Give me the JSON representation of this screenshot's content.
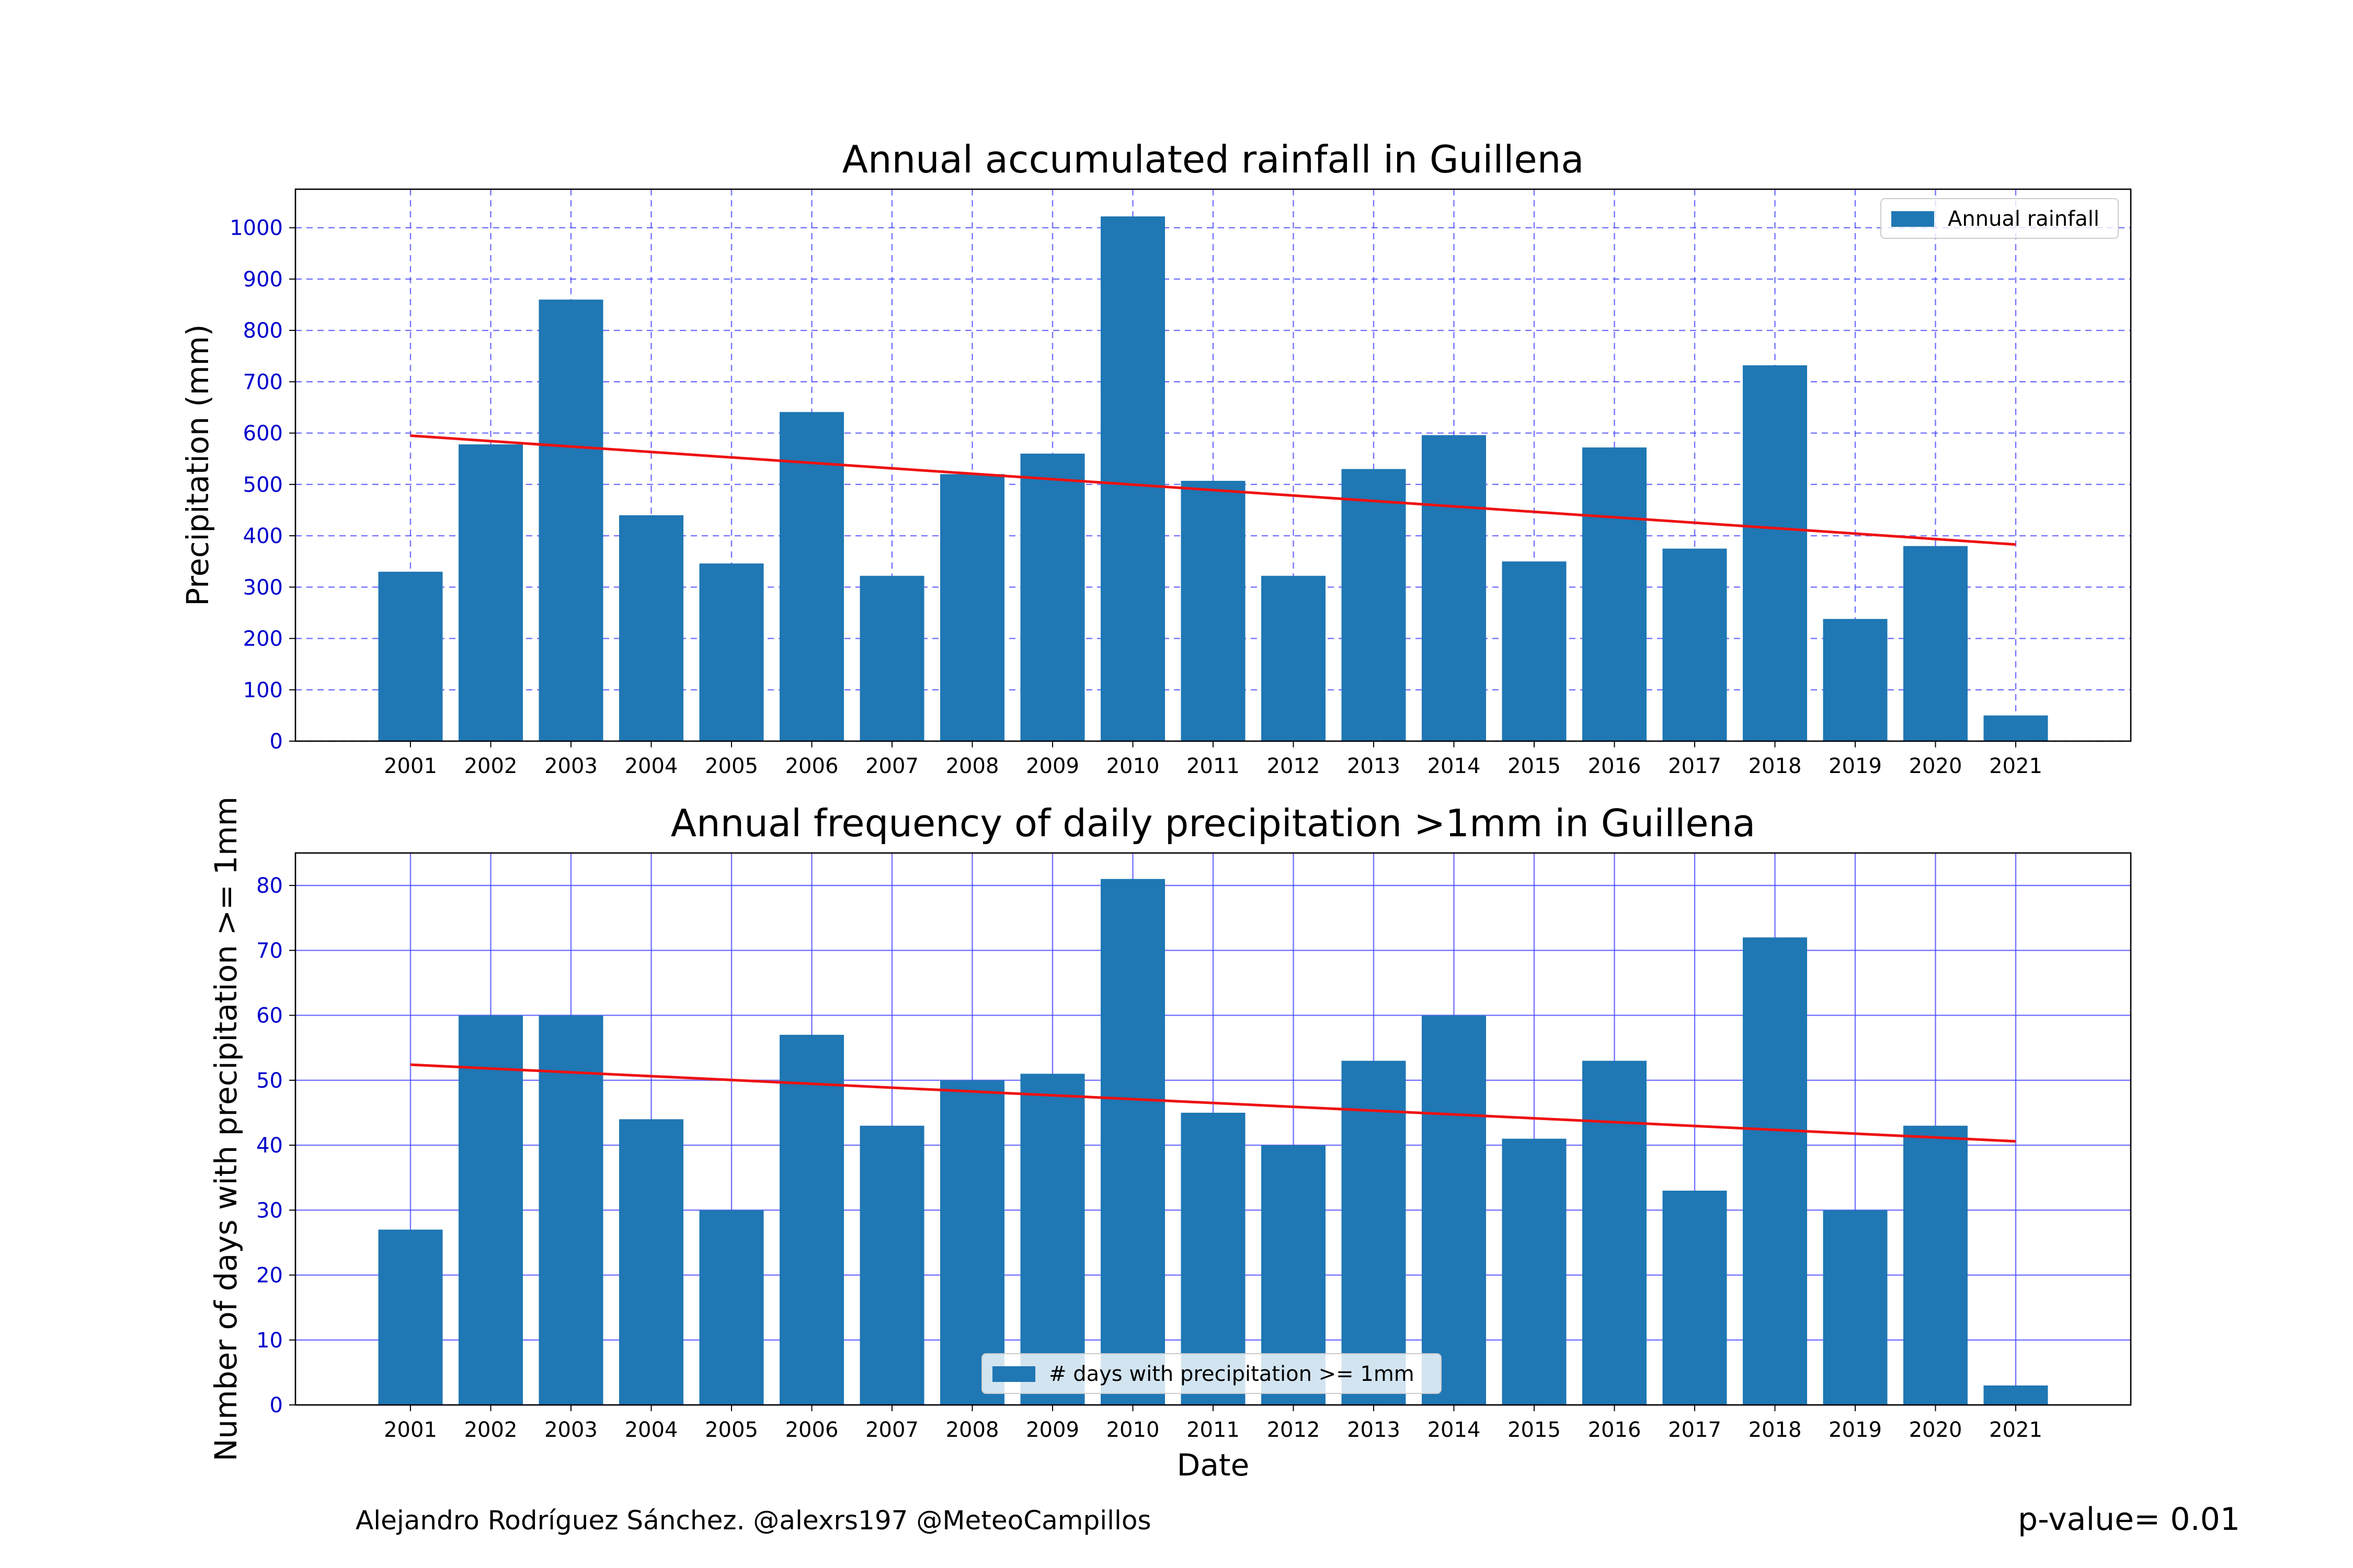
{
  "chart_data": [
    {
      "type": "bar",
      "title": "Annual accumulated rainfall in Guillena",
      "xlabel": "",
      "ylabel": "Precipitation (mm)",
      "categories": [
        "2001",
        "2002",
        "2003",
        "2004",
        "2005",
        "2006",
        "2007",
        "2008",
        "2009",
        "2010",
        "2011",
        "2012",
        "2013",
        "2014",
        "2015",
        "2016",
        "2017",
        "2018",
        "2019",
        "2020",
        "2021"
      ],
      "series": [
        {
          "name": "Annual rainfall",
          "color": "#1f77b4",
          "values": [
            330,
            578,
            860,
            440,
            346,
            641,
            322,
            520,
            560,
            1022,
            507,
            322,
            530,
            596,
            350,
            572,
            375,
            732,
            238,
            380,
            50
          ]
        }
      ],
      "trend": {
        "color": "#ee1111",
        "start": [
          2001,
          595
        ],
        "end": [
          2021,
          383
        ]
      },
      "ylim": [
        0,
        1075
      ],
      "yticks": [
        0,
        100,
        200,
        300,
        400,
        500,
        600,
        700,
        800,
        900,
        1000
      ],
      "grid": "dashed",
      "legend": "top-right",
      "tick_color": "#0000cc"
    },
    {
      "type": "bar",
      "title": "Annual frequency of daily precipitation >1mm in Guillena",
      "xlabel": "Date",
      "ylabel": "Number of days with precipitation >= 1mm",
      "categories": [
        "2001",
        "2002",
        "2003",
        "2004",
        "2005",
        "2006",
        "2007",
        "2008",
        "2009",
        "2010",
        "2011",
        "2012",
        "2013",
        "2014",
        "2015",
        "2016",
        "2017",
        "2018",
        "2019",
        "2020",
        "2021"
      ],
      "series": [
        {
          "name": "# days with precipitation >= 1mm",
          "color": "#1f77b4",
          "values": [
            27,
            60,
            60,
            44,
            30,
            57,
            43,
            50,
            51,
            81,
            45,
            40,
            53,
            60,
            41,
            53,
            33,
            72,
            30,
            43,
            3
          ]
        }
      ],
      "trend": {
        "color": "#ee1111",
        "start": [
          2001,
          52.4
        ],
        "end": [
          2021,
          40.6
        ]
      },
      "ylim": [
        0,
        85
      ],
      "yticks": [
        0,
        10,
        20,
        30,
        40,
        50,
        60,
        70,
        80
      ],
      "grid": "solid",
      "legend": "lower-center",
      "tick_color": "#0000cc"
    }
  ],
  "footer": {
    "credit": "Alejandro Rodríguez Sánchez. @alexrs197 @MeteoCampillos",
    "pvalue": "p-value= 0.01"
  }
}
